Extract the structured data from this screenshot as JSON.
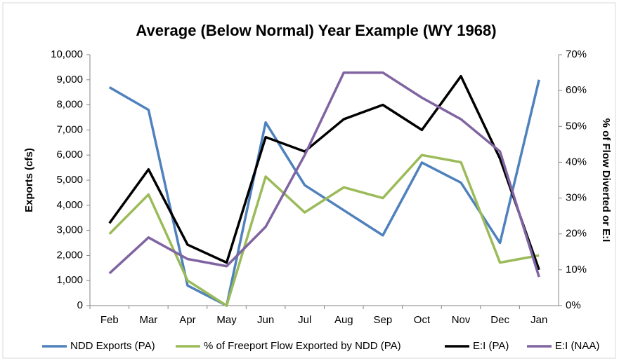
{
  "chart_data": {
    "type": "line",
    "title": "Average (Below Normal) Year Example (WY 1968)",
    "y_label": "Exports (cfs)",
    "y2_label": "% of Flow Diverted or E:I",
    "categories": [
      "Feb",
      "Mar",
      "Apr",
      "May",
      "Jun",
      "Jul",
      "Aug",
      "Sep",
      "Oct",
      "Nov",
      "Dec",
      "Jan"
    ],
    "ylim": [
      0,
      10000
    ],
    "yticks": [
      0,
      {
        "value": 1000,
        "label": "1,000"
      },
      {
        "value": 2000,
        "label": "2,000"
      },
      {
        "value": 3000,
        "label": "3,000"
      },
      {
        "value": 4000,
        "label": "4,000"
      },
      {
        "value": 5000,
        "label": "5,000"
      },
      {
        "value": 6000,
        "label": "6,000"
      },
      {
        "value": 7000,
        "label": "7,000"
      },
      {
        "value": 8000,
        "label": "8,000"
      },
      {
        "value": 9000,
        "label": "9,000"
      },
      {
        "value": 10000,
        "label": "10,000"
      }
    ],
    "y2lim": [
      0,
      70
    ],
    "y2ticks": [
      {
        "value": 0,
        "label": "0%"
      },
      {
        "value": 10,
        "label": "10%"
      },
      {
        "value": 20,
        "label": "20%"
      },
      {
        "value": 30,
        "label": "30%"
      },
      {
        "value": 40,
        "label": "40%"
      },
      {
        "value": 50,
        "label": "50%"
      },
      {
        "value": 60,
        "label": "60%"
      },
      {
        "value": 70,
        "label": "70%"
      }
    ],
    "legend": "bottom",
    "series": [
      {
        "name": "NDD Exports (PA)",
        "color": "#4f81bd",
        "values": [
          8700,
          7800,
          800,
          0,
          7300,
          4800,
          3800,
          2800,
          5700,
          4900,
          2500,
          9000
        ]
      },
      {
        "name": "% of Freeport Flow Exported by NDD (PA)",
        "color": "#9bbb59",
        "axis": "y2",
        "values": [
          20,
          31,
          7,
          0,
          36,
          26,
          33,
          30,
          42,
          40,
          12,
          14
        ]
      },
      {
        "name": "E:I (PA)",
        "color": "#000000",
        "axis": "y2",
        "values": [
          23,
          38,
          17,
          12,
          47,
          43,
          52,
          56,
          49,
          64,
          41,
          10
        ]
      },
      {
        "name": "E:I (NAA)",
        "color": "#8064a2",
        "axis": "y2",
        "values": [
          9,
          19,
          13,
          11,
          22,
          42,
          65,
          65,
          58,
          52,
          43,
          8
        ]
      }
    ]
  }
}
